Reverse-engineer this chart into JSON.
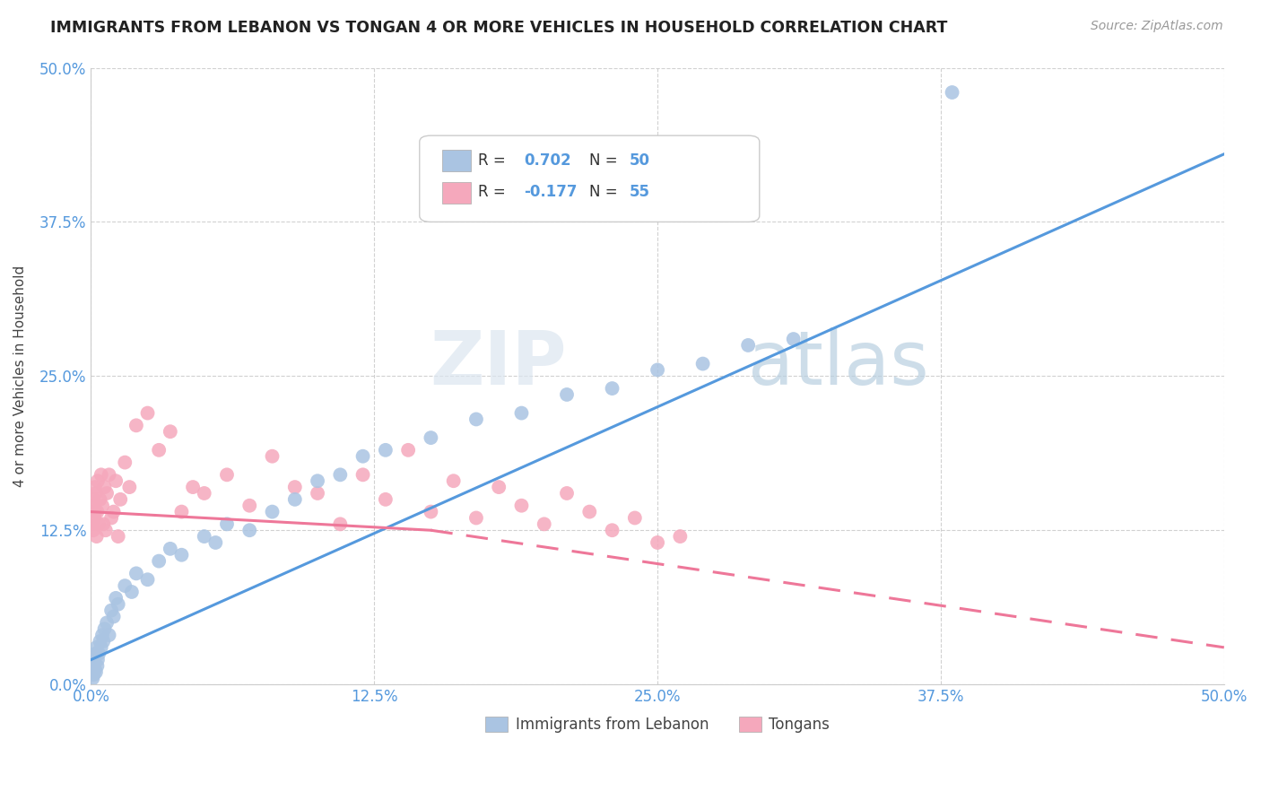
{
  "title": "IMMIGRANTS FROM LEBANON VS TONGAN 4 OR MORE VEHICLES IN HOUSEHOLD CORRELATION CHART",
  "source": "Source: ZipAtlas.com",
  "ylabel": "4 or more Vehicles in Household",
  "xlim": [
    0.0,
    50.0
  ],
  "ylim": [
    0.0,
    50.0
  ],
  "xticks": [
    0.0,
    12.5,
    25.0,
    37.5,
    50.0
  ],
  "yticks": [
    0.0,
    12.5,
    25.0,
    37.5,
    50.0
  ],
  "blue_R": 0.702,
  "blue_N": 50,
  "pink_R": -0.177,
  "pink_N": 55,
  "blue_color": "#aac4e2",
  "pink_color": "#f5a8bc",
  "blue_line_color": "#5599dd",
  "pink_line_color": "#ee7799",
  "legend_blue_label": "Immigrants from Lebanon",
  "legend_pink_label": "Tongans",
  "watermark_zip": "ZIP",
  "watermark_atlas": "atlas",
  "blue_line_x0": 0.0,
  "blue_line_y0": 2.0,
  "blue_line_x1": 50.0,
  "blue_line_y1": 43.0,
  "pink_solid_x0": 0.0,
  "pink_solid_y0": 14.0,
  "pink_solid_x1": 15.0,
  "pink_solid_y1": 12.5,
  "pink_dash_x0": 15.0,
  "pink_dash_y0": 12.5,
  "pink_dash_x1": 50.0,
  "pink_dash_y1": 3.0,
  "blue_scatter_x": [
    0.05,
    0.08,
    0.1,
    0.12,
    0.15,
    0.18,
    0.2,
    0.22,
    0.25,
    0.28,
    0.3,
    0.35,
    0.4,
    0.45,
    0.5,
    0.55,
    0.6,
    0.7,
    0.8,
    0.9,
    1.0,
    1.1,
    1.2,
    1.5,
    1.8,
    2.0,
    2.5,
    3.0,
    3.5,
    4.0,
    5.0,
    5.5,
    6.0,
    7.0,
    8.0,
    9.0,
    10.0,
    11.0,
    12.0,
    13.0,
    15.0,
    17.0,
    19.0,
    21.0,
    23.0,
    25.0,
    27.0,
    29.0,
    31.0,
    38.0
  ],
  "blue_scatter_y": [
    1.0,
    0.5,
    1.5,
    0.8,
    2.0,
    1.2,
    2.5,
    1.0,
    3.0,
    1.5,
    2.0,
    2.5,
    3.5,
    3.0,
    4.0,
    3.5,
    4.5,
    5.0,
    4.0,
    6.0,
    5.5,
    7.0,
    6.5,
    8.0,
    7.5,
    9.0,
    8.5,
    10.0,
    11.0,
    10.5,
    12.0,
    11.5,
    13.0,
    12.5,
    14.0,
    15.0,
    16.5,
    17.0,
    18.5,
    19.0,
    20.0,
    21.5,
    22.0,
    23.5,
    24.0,
    25.5,
    26.0,
    27.5,
    28.0,
    48.0
  ],
  "pink_scatter_x": [
    0.05,
    0.08,
    0.1,
    0.12,
    0.15,
    0.18,
    0.2,
    0.22,
    0.25,
    0.28,
    0.3,
    0.35,
    0.4,
    0.45,
    0.5,
    0.55,
    0.6,
    0.65,
    0.7,
    0.8,
    0.9,
    1.0,
    1.1,
    1.2,
    1.3,
    1.5,
    1.7,
    2.0,
    2.5,
    3.0,
    3.5,
    4.0,
    4.5,
    5.0,
    6.0,
    7.0,
    8.0,
    9.0,
    10.0,
    11.0,
    12.0,
    13.0,
    14.0,
    15.0,
    16.0,
    17.0,
    18.0,
    19.0,
    20.0,
    21.0,
    22.0,
    23.0,
    24.0,
    25.0,
    26.0
  ],
  "pink_scatter_y": [
    13.0,
    14.5,
    12.5,
    15.0,
    13.5,
    16.0,
    14.0,
    15.5,
    12.0,
    14.0,
    16.5,
    13.0,
    15.0,
    17.0,
    14.5,
    13.0,
    16.0,
    12.5,
    15.5,
    17.0,
    13.5,
    14.0,
    16.5,
    12.0,
    15.0,
    18.0,
    16.0,
    21.0,
    22.0,
    19.0,
    20.5,
    14.0,
    16.0,
    15.5,
    17.0,
    14.5,
    18.5,
    16.0,
    15.5,
    13.0,
    17.0,
    15.0,
    19.0,
    14.0,
    16.5,
    13.5,
    16.0,
    14.5,
    13.0,
    15.5,
    14.0,
    12.5,
    13.5,
    11.5,
    12.0
  ]
}
